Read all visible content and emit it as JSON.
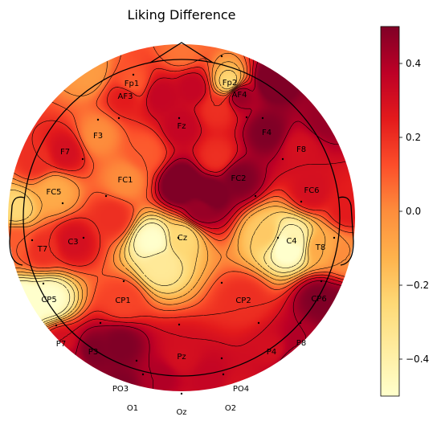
{
  "chart_data": {
    "type": "heatmap",
    "title": "Liking Difference",
    "colormap": "YlOrRd",
    "colorbar": {
      "vmin": -0.5,
      "vmax": 0.5,
      "ticks": [
        0.4,
        0.2,
        0.0,
        -0.2,
        -0.4
      ],
      "tick_labels": [
        "0.4",
        "0.2",
        "0.0",
        "−0.2",
        "−0.4"
      ]
    },
    "electrodes": [
      {
        "name": "Fp1",
        "value": 0.1
      },
      {
        "name": "Fp2",
        "value": -0.25
      },
      {
        "name": "AF3",
        "value": 0.25
      },
      {
        "name": "AF4",
        "value": 0.45
      },
      {
        "name": "F3",
        "value": 0.0
      },
      {
        "name": "Fz",
        "value": 0.35
      },
      {
        "name": "F4",
        "value": 0.5
      },
      {
        "name": "F7",
        "value": 0.3
      },
      {
        "name": "F8",
        "value": 0.3
      },
      {
        "name": "FC1",
        "value": 0.0
      },
      {
        "name": "FC2",
        "value": 0.5
      },
      {
        "name": "FC5",
        "value": -0.1
      },
      {
        "name": "FC6",
        "value": 0.3
      },
      {
        "name": "T7",
        "value": 0.2
      },
      {
        "name": "C3",
        "value": 0.3
      },
      {
        "name": "Cz",
        "value": -0.25
      },
      {
        "name": "C4",
        "value": -0.4
      },
      {
        "name": "T8",
        "value": -0.1
      },
      {
        "name": "CP5",
        "value": -0.5
      },
      {
        "name": "CP1",
        "value": 0.15
      },
      {
        "name": "CP2",
        "value": 0.2
      },
      {
        "name": "CP6",
        "value": 0.5
      },
      {
        "name": "P7",
        "value": 0.3
      },
      {
        "name": "P3",
        "value": 0.5
      },
      {
        "name": "Pz",
        "value": 0.3
      },
      {
        "name": "P4",
        "value": 0.3
      },
      {
        "name": "P8",
        "value": 0.4
      },
      {
        "name": "PO3",
        "value": 0.5
      },
      {
        "name": "PO4",
        "value": 0.3
      },
      {
        "name": "O1",
        "value": 0.4
      },
      {
        "name": "Oz",
        "value": 0.3
      },
      {
        "name": "O2",
        "value": 0.3
      }
    ]
  }
}
